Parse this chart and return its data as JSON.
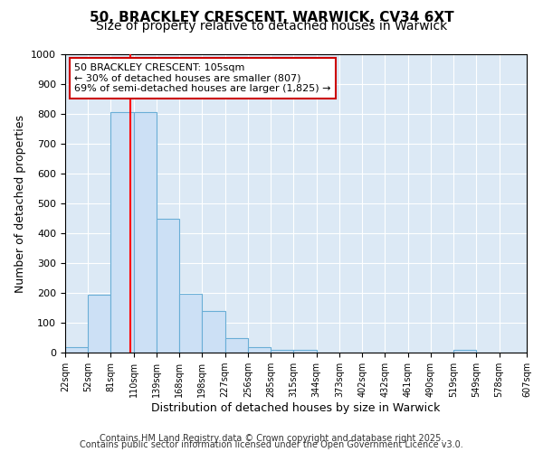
{
  "title": "50, BRACKLEY CRESCENT, WARWICK, CV34 6XT",
  "subtitle": "Size of property relative to detached houses in Warwick",
  "xlabel": "Distribution of detached houses by size in Warwick",
  "ylabel": "Number of detached properties",
  "bin_edges": [
    22,
    51,
    80,
    109,
    138,
    167,
    196,
    225,
    254,
    283,
    312,
    341,
    370,
    399,
    428,
    457,
    486,
    515,
    544,
    573,
    608
  ],
  "bin_labels": [
    "22sqm",
    "52sqm",
    "81sqm",
    "110sqm",
    "139sqm",
    "168sqm",
    "198sqm",
    "227sqm",
    "256sqm",
    "285sqm",
    "315sqm",
    "344sqm",
    "373sqm",
    "402sqm",
    "432sqm",
    "461sqm",
    "490sqm",
    "519sqm",
    "549sqm",
    "578sqm",
    "607sqm"
  ],
  "counts": [
    18,
    195,
    807,
    807,
    447,
    198,
    140,
    50,
    18,
    10,
    10,
    0,
    0,
    0,
    0,
    0,
    0,
    10,
    0,
    0
  ],
  "bar_color": "#cce0f5",
  "bar_edge_color": "#6aaed6",
  "bar_edge_width": 0.8,
  "red_line_x": 105,
  "ylim": [
    0,
    1000
  ],
  "yticks": [
    0,
    100,
    200,
    300,
    400,
    500,
    600,
    700,
    800,
    900,
    1000
  ],
  "annotation_text": "50 BRACKLEY CRESCENT: 105sqm\n← 30% of detached houses are smaller (807)\n69% of semi-detached houses are larger (1,825) →",
  "annotation_box_color": "#ffffff",
  "annotation_border_color": "#cc0000",
  "footer1": "Contains HM Land Registry data © Crown copyright and database right 2025.",
  "footer2": "Contains public sector information licensed under the Open Government Licence v3.0.",
  "fig_bg_color": "#ffffff",
  "plot_bg_color": "#dce9f5",
  "grid_color": "#ffffff",
  "title_fontsize": 11,
  "subtitle_fontsize": 10,
  "label_fontsize": 9,
  "tick_fontsize": 8,
  "annotation_fontsize": 8,
  "footer_fontsize": 7
}
